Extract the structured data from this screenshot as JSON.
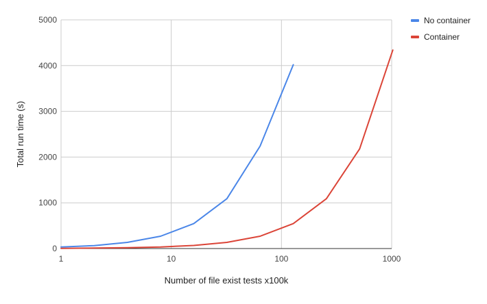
{
  "chart_data": {
    "type": "line",
    "title": "",
    "xlabel": "Number of file exist tests x100k",
    "ylabel": "Total run time (s)",
    "x_scale": "log",
    "xlim": [
      1,
      1000
    ],
    "ylim": [
      0,
      5000
    ],
    "grid": true,
    "legend_position": "top-right",
    "x_ticks": [
      {
        "value": 1,
        "label": "1"
      },
      {
        "value": 10,
        "label": "10"
      },
      {
        "value": 100,
        "label": "100"
      },
      {
        "value": 1000,
        "label": "1000"
      }
    ],
    "y_ticks": [
      {
        "value": 0,
        "label": "0"
      },
      {
        "value": 1000,
        "label": "1000"
      },
      {
        "value": 2000,
        "label": "2000"
      },
      {
        "value": 3000,
        "label": "3000"
      },
      {
        "value": 4000,
        "label": "4000"
      },
      {
        "value": 5000,
        "label": "5000"
      }
    ],
    "series": [
      {
        "name": "No container",
        "color": "#4a86e8",
        "points": [
          {
            "x": 1,
            "y": 35
          },
          {
            "x": 2,
            "y": 65
          },
          {
            "x": 4,
            "y": 135
          },
          {
            "x": 8,
            "y": 270
          },
          {
            "x": 16,
            "y": 545
          },
          {
            "x": 32,
            "y": 1090
          },
          {
            "x": 64,
            "y": 2240
          },
          {
            "x": 128,
            "y": 4020
          }
        ]
      },
      {
        "name": "Container",
        "color": "#db4437",
        "points": [
          {
            "x": 1,
            "y": 5
          },
          {
            "x": 2,
            "y": 10
          },
          {
            "x": 4,
            "y": 18
          },
          {
            "x": 8,
            "y": 35
          },
          {
            "x": 16,
            "y": 68
          },
          {
            "x": 32,
            "y": 135
          },
          {
            "x": 64,
            "y": 270
          },
          {
            "x": 128,
            "y": 545
          },
          {
            "x": 256,
            "y": 1090
          },
          {
            "x": 512,
            "y": 2180
          },
          {
            "x": 1024,
            "y": 4340
          }
        ]
      }
    ]
  }
}
